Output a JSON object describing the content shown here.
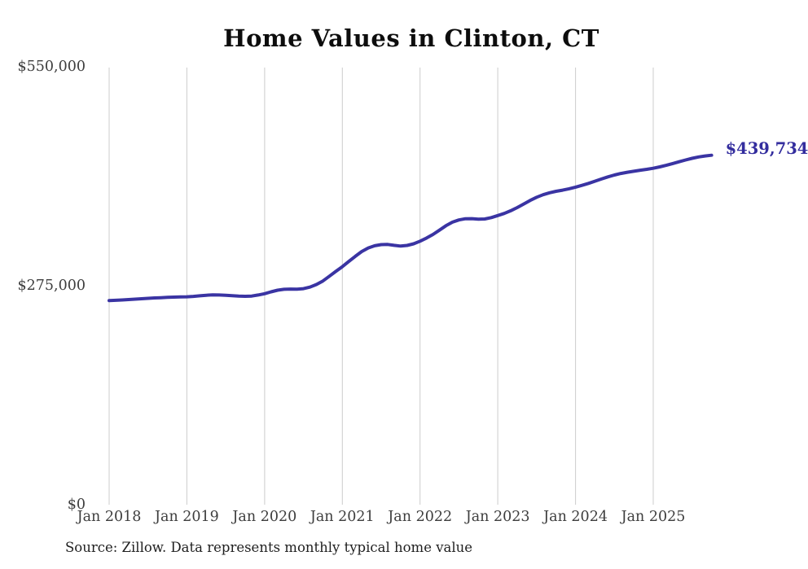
{
  "title": "Home Values in Clinton, CT",
  "source_note": "Source: Zillow. Data represents monthly typical home value",
  "end_label": "$439,734",
  "colors": {
    "line": "#3a34a3",
    "grid": "#cccccc",
    "axis_text": "#3d3d3d",
    "title_text": "#0d0d0d",
    "note_text": "#1f1f1f",
    "background": "#ffffff"
  },
  "y_axis": {
    "labels": [
      "$550,000",
      "$275,000",
      "$0"
    ]
  },
  "x_axis": {
    "labels": [
      "Jan 2018",
      "Jan 2019",
      "Jan 2020",
      "Jan 2021",
      "Jan 2022",
      "Jan 2023",
      "Jan 2024",
      "Jan 2025"
    ]
  },
  "chart_data": {
    "type": "line",
    "title": "Home Values in Clinton, CT",
    "series_name": "Monthly typical home value (Zillow)",
    "xlabel": "",
    "ylabel": "",
    "ylim": [
      0,
      550000
    ],
    "grid": "vertical-only",
    "legend": false,
    "line_color": "#3a34a3",
    "end_annotation": "$439,734",
    "x_tick_labels": [
      "Jan 2018",
      "Jan 2019",
      "Jan 2020",
      "Jan 2021",
      "Jan 2022",
      "Jan 2023",
      "Jan 2024",
      "Jan 2025"
    ],
    "y_tick_labels": [
      "$0",
      "$275,000",
      "$550,000"
    ],
    "x": [
      "2018-01",
      "2018-02",
      "2018-03",
      "2018-04",
      "2018-05",
      "2018-06",
      "2018-07",
      "2018-08",
      "2018-09",
      "2018-10",
      "2018-11",
      "2018-12",
      "2019-01",
      "2019-02",
      "2019-03",
      "2019-04",
      "2019-05",
      "2019-06",
      "2019-07",
      "2019-08",
      "2019-09",
      "2019-10",
      "2019-11",
      "2019-12",
      "2020-01",
      "2020-02",
      "2020-03",
      "2020-04",
      "2020-05",
      "2020-06",
      "2020-07",
      "2020-08",
      "2020-09",
      "2020-10",
      "2020-11",
      "2020-12",
      "2021-01",
      "2021-02",
      "2021-03",
      "2021-04",
      "2021-05",
      "2021-06",
      "2021-07",
      "2021-08",
      "2021-09",
      "2021-10",
      "2021-11",
      "2021-12",
      "2022-01",
      "2022-02",
      "2022-03",
      "2022-04",
      "2022-05",
      "2022-06",
      "2022-07",
      "2022-08",
      "2022-09",
      "2022-10",
      "2022-11",
      "2022-12",
      "2023-01",
      "2023-02",
      "2023-03",
      "2023-04",
      "2023-05",
      "2023-06",
      "2023-07",
      "2023-08",
      "2023-09",
      "2023-10",
      "2023-11",
      "2023-12",
      "2024-01",
      "2024-02",
      "2024-03",
      "2024-04",
      "2024-05",
      "2024-06",
      "2024-07",
      "2024-08",
      "2024-09",
      "2024-10",
      "2024-11",
      "2024-12",
      "2025-01",
      "2025-02",
      "2025-03",
      "2025-04",
      "2025-05",
      "2025-06",
      "2025-07",
      "2025-08",
      "2025-09",
      "2025-10"
    ],
    "values": [
      256800,
      257200,
      257600,
      258100,
      258600,
      259100,
      259600,
      260100,
      260500,
      260900,
      261200,
      261400,
      261600,
      262100,
      262800,
      263500,
      263900,
      263800,
      263400,
      262900,
      262400,
      262200,
      262500,
      263800,
      265500,
      267800,
      269900,
      271000,
      271300,
      271200,
      271800,
      273800,
      277000,
      281500,
      287500,
      293500,
      299500,
      306000,
      312500,
      318500,
      323000,
      325800,
      327200,
      327400,
      326300,
      325400,
      326200,
      328300,
      331500,
      335500,
      340000,
      345500,
      351000,
      355500,
      358300,
      359800,
      359900,
      359300,
      359500,
      361200,
      363800,
      366500,
      369800,
      373800,
      378300,
      382800,
      386800,
      390000,
      392500,
      394300,
      395800,
      397500,
      399500,
      401800,
      404300,
      407000,
      409800,
      412500,
      414800,
      416800,
      418300,
      419500,
      420800,
      422000,
      423300,
      425000,
      427000,
      429200,
      431500,
      433800,
      435800,
      437500,
      438800,
      439734
    ]
  }
}
